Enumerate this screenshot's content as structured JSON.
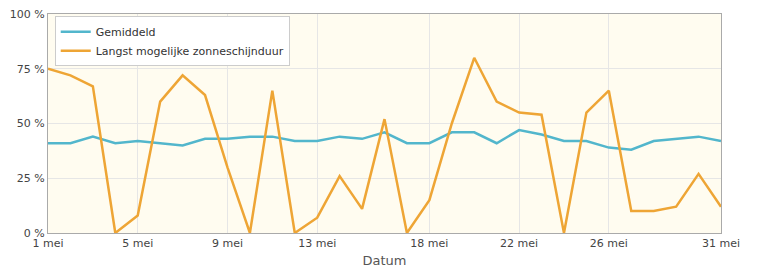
{
  "chart_data": {
    "type": "line",
    "x_label": "Datum",
    "categories": [
      "1 mei",
      null,
      null,
      null,
      "5 mei",
      null,
      null,
      null,
      "9 mei",
      null,
      null,
      null,
      "13 mei",
      null,
      null,
      null,
      null,
      "18 mei",
      null,
      null,
      null,
      "22 mei",
      null,
      null,
      null,
      "26 mei",
      null,
      null,
      null,
      null,
      "31 mei"
    ],
    "series": [
      {
        "name": "Gemiddeld",
        "color": "#52b6cc",
        "values": [
          41,
          41,
          44,
          41,
          42,
          41,
          40,
          43,
          43,
          44,
          44,
          42,
          42,
          44,
          43,
          46,
          41,
          41,
          46,
          46,
          41,
          47,
          45,
          42,
          42,
          39,
          38,
          42,
          43,
          44,
          42
        ]
      },
      {
        "name": "Langst mogelijke zonneschijnduur",
        "color": "#eea535",
        "values": [
          75,
          72,
          67,
          0,
          8,
          60,
          72,
          63,
          30,
          0,
          65,
          0,
          7,
          26,
          11,
          52,
          0,
          15,
          50,
          80,
          60,
          55,
          54,
          0,
          55,
          65,
          10,
          10,
          12,
          27,
          12
        ]
      }
    ],
    "ylim": [
      0,
      100
    ],
    "yticks": [
      {
        "value": 0,
        "label": "0 %"
      },
      {
        "value": 25,
        "label": "25 %"
      },
      {
        "value": 50,
        "label": "50 %"
      },
      {
        "value": 75,
        "label": "75 %"
      },
      {
        "value": 100,
        "label": "100 %"
      }
    ],
    "grid": true,
    "legend": "top-left"
  }
}
